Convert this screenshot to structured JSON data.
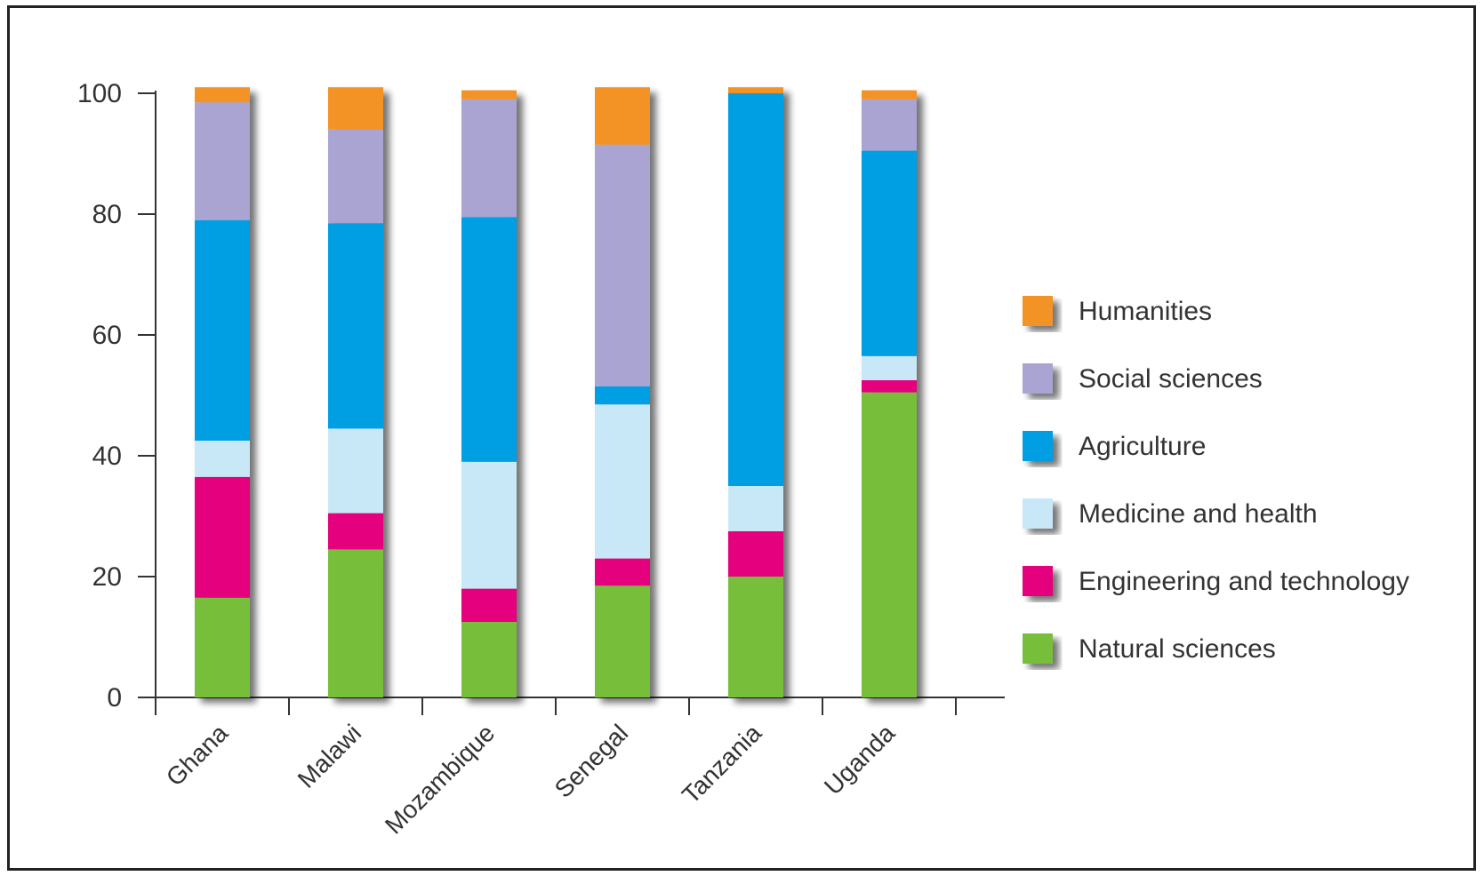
{
  "chart_data": {
    "type": "bar",
    "stacked": true,
    "categories": [
      "Ghana",
      "Malawi",
      "Mozambique",
      "Senegal",
      "Tanzania",
      "Uganda"
    ],
    "series": [
      {
        "name": "Natural sciences",
        "color": "#77bf3a",
        "values": [
          16.5,
          24.5,
          12.5,
          18.5,
          20,
          50.5
        ]
      },
      {
        "name": "Engineering and technology",
        "color": "#e5007e",
        "values": [
          20,
          6,
          5.5,
          4.5,
          7.5,
          2
        ]
      },
      {
        "name": "Medicine and health",
        "color": "#c9e8f7",
        "values": [
          6,
          14,
          21,
          25.5,
          7.5,
          4
        ]
      },
      {
        "name": "Agriculture",
        "color": "#009fe3",
        "values": [
          36.5,
          34,
          40.5,
          3,
          65,
          34
        ]
      },
      {
        "name": "Social sciences",
        "color": "#a9a4d2",
        "values": [
          19.5,
          15.5,
          19.5,
          40,
          0,
          8.5
        ]
      },
      {
        "name": "Humanities",
        "color": "#f39325",
        "values": [
          2.5,
          7,
          1.5,
          9.5,
          1,
          1.5
        ]
      }
    ],
    "legend_order": [
      "Humanities",
      "Social sciences",
      "Agriculture",
      "Medicine and health",
      "Engineering and technology",
      "Natural sciences"
    ],
    "yticks": [
      0,
      20,
      40,
      60,
      80,
      100
    ],
    "ylim": [
      0,
      100
    ],
    "legend_position": "right",
    "title": "",
    "xlabel": "",
    "ylabel": ""
  }
}
